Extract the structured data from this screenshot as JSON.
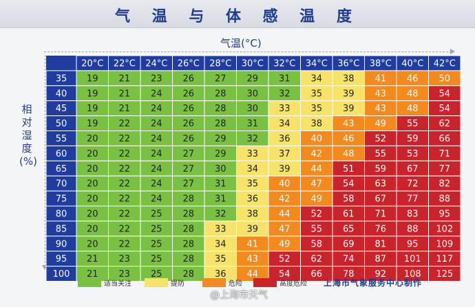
{
  "chart_data": {
    "type": "heatmap",
    "title": "气 温 与 体 感 温 度",
    "xlabel": "气温(°C)",
    "ylabel": "相对湿度(%)",
    "x": [
      "20°C",
      "22°C",
      "24°C",
      "26°C",
      "28°C",
      "30°C",
      "32°C",
      "34°C",
      "36°C",
      "38°C",
      "40°C",
      "42°C"
    ],
    "y": [
      "35",
      "40",
      "45",
      "50",
      "55",
      "60",
      "65",
      "70",
      "75",
      "80",
      "85",
      "90",
      "95",
      "100"
    ],
    "values": [
      [
        19,
        21,
        23,
        26,
        27,
        29,
        31,
        34,
        38,
        41,
        46,
        50
      ],
      [
        19,
        21,
        24,
        26,
        28,
        30,
        32,
        35,
        39,
        43,
        48,
        54
      ],
      [
        19,
        21,
        24,
        26,
        28,
        30,
        33,
        35,
        39,
        43,
        48,
        54
      ],
      [
        19,
        22,
        24,
        26,
        28,
        31,
        34,
        38,
        43,
        49,
        55,
        62
      ],
      [
        20,
        22,
        24,
        26,
        29,
        32,
        36,
        40,
        46,
        52,
        59,
        66
      ],
      [
        20,
        22,
        24,
        27,
        29,
        33,
        37,
        42,
        48,
        55,
        53,
        71
      ],
      [
        20,
        22,
        24,
        27,
        30,
        34,
        39,
        44,
        51,
        59,
        67,
        77
      ],
      [
        20,
        22,
        24,
        27,
        31,
        35,
        40,
        47,
        54,
        63,
        72,
        82
      ],
      [
        20,
        22,
        24,
        28,
        31,
        36,
        42,
        49,
        58,
        67,
        77,
        88
      ],
      [
        20,
        22,
        25,
        28,
        32,
        38,
        44,
        52,
        61,
        71,
        83,
        95
      ],
      [
        20,
        22,
        25,
        28,
        33,
        39,
        47,
        55,
        65,
        76,
        88,
        102
      ],
      [
        20,
        22,
        25,
        28,
        34,
        41,
        49,
        58,
        69,
        81,
        95,
        109
      ],
      [
        21,
        23,
        25,
        28,
        35,
        43,
        52,
        62,
        74,
        87,
        101,
        117
      ],
      [
        21,
        23,
        25,
        28,
        36,
        44,
        54,
        66,
        78,
        92,
        108,
        125
      ]
    ],
    "levels": [
      [
        0,
        0,
        0,
        0,
        0,
        0,
        0,
        1,
        1,
        2,
        2,
        2
      ],
      [
        0,
        0,
        0,
        0,
        0,
        0,
        0,
        1,
        1,
        2,
        2,
        3
      ],
      [
        0,
        0,
        0,
        0,
        0,
        0,
        1,
        1,
        1,
        2,
        2,
        3
      ],
      [
        0,
        0,
        0,
        0,
        0,
        0,
        1,
        1,
        2,
        2,
        3,
        3
      ],
      [
        0,
        0,
        0,
        0,
        0,
        0,
        1,
        2,
        2,
        3,
        3,
        3
      ],
      [
        0,
        0,
        0,
        0,
        0,
        1,
        1,
        2,
        2,
        3,
        3,
        3
      ],
      [
        0,
        0,
        0,
        0,
        0,
        1,
        1,
        2,
        3,
        3,
        3,
        3
      ],
      [
        0,
        0,
        0,
        0,
        0,
        1,
        2,
        2,
        3,
        3,
        3,
        3
      ],
      [
        0,
        0,
        0,
        0,
        0,
        1,
        2,
        2,
        3,
        3,
        3,
        3
      ],
      [
        0,
        0,
        0,
        0,
        0,
        1,
        2,
        3,
        3,
        3,
        3,
        3
      ],
      [
        0,
        0,
        0,
        0,
        1,
        1,
        2,
        3,
        3,
        3,
        3,
        3
      ],
      [
        0,
        0,
        0,
        0,
        1,
        2,
        2,
        3,
        3,
        3,
        3,
        3
      ],
      [
        0,
        0,
        0,
        0,
        1,
        2,
        3,
        3,
        3,
        3,
        3,
        3
      ],
      [
        0,
        0,
        0,
        0,
        1,
        2,
        3,
        3,
        3,
        3,
        3,
        3
      ]
    ],
    "legend": [
      {
        "label": "适当关注",
        "color": "#7ac143"
      },
      {
        "label": "提防",
        "color": "#f7e36a"
      },
      {
        "label": "危险",
        "color": "#f38a1f"
      },
      {
        "label": "高度危险",
        "color": "#c9232c"
      }
    ],
    "header_color": "#1f3c9e",
    "source": "上海市气象服务中心制作"
  },
  "watermark": "@上海市天气"
}
